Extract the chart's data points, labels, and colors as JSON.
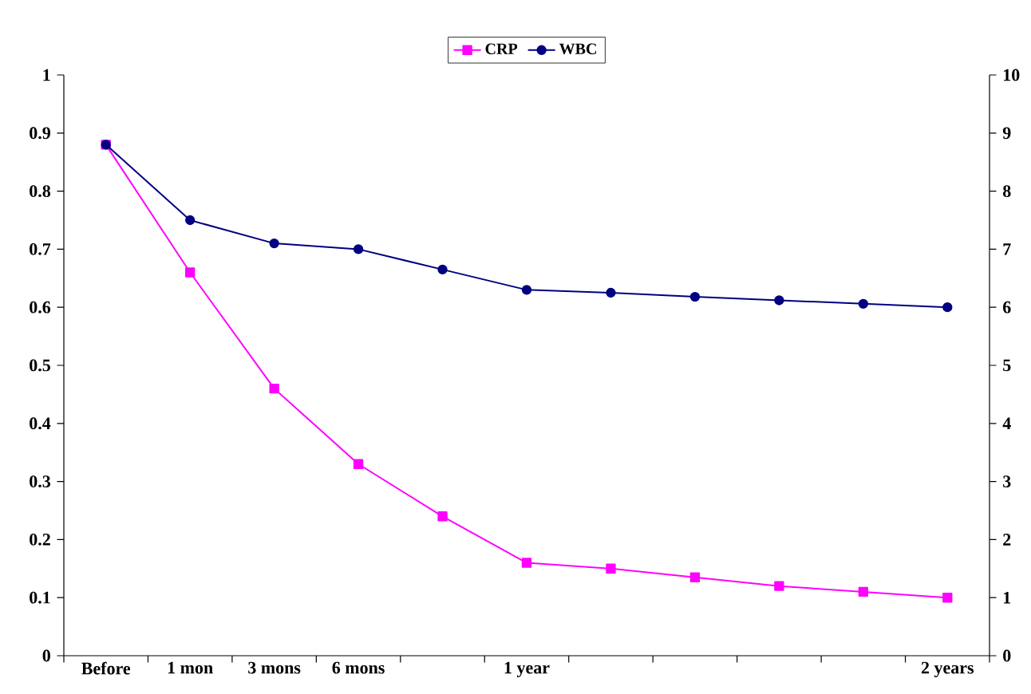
{
  "chart_data": {
    "type": "line",
    "categories": [
      "Before",
      "1 mon",
      "3 mons",
      "6 mons",
      null,
      "1 year",
      null,
      null,
      null,
      null,
      "2 years"
    ],
    "series": [
      {
        "name": "CRP",
        "color": "#ff00ff",
        "marker": "square",
        "values": [
          0.88,
          0.66,
          0.46,
          0.33,
          0.24,
          0.16,
          0.15,
          0.135,
          0.12,
          0.11,
          0.1
        ]
      },
      {
        "name": "WBC",
        "color": "#000080",
        "marker": "circle",
        "axis": "y2",
        "values": [
          8.8,
          7.5,
          7.1,
          7.0,
          6.65,
          6.3,
          6.25,
          6.18,
          6.12,
          6.06,
          6.0
        ]
      }
    ],
    "ylim": [
      0,
      1
    ],
    "yticks": [
      0,
      0.1,
      0.2,
      0.3,
      0.4,
      0.5,
      0.6,
      0.7,
      0.8,
      0.9,
      1
    ],
    "y2lim": [
      0,
      10
    ],
    "y2ticks": [
      0,
      1,
      2,
      3,
      4,
      5,
      6,
      7,
      8,
      9,
      10
    ],
    "legend": "top"
  }
}
